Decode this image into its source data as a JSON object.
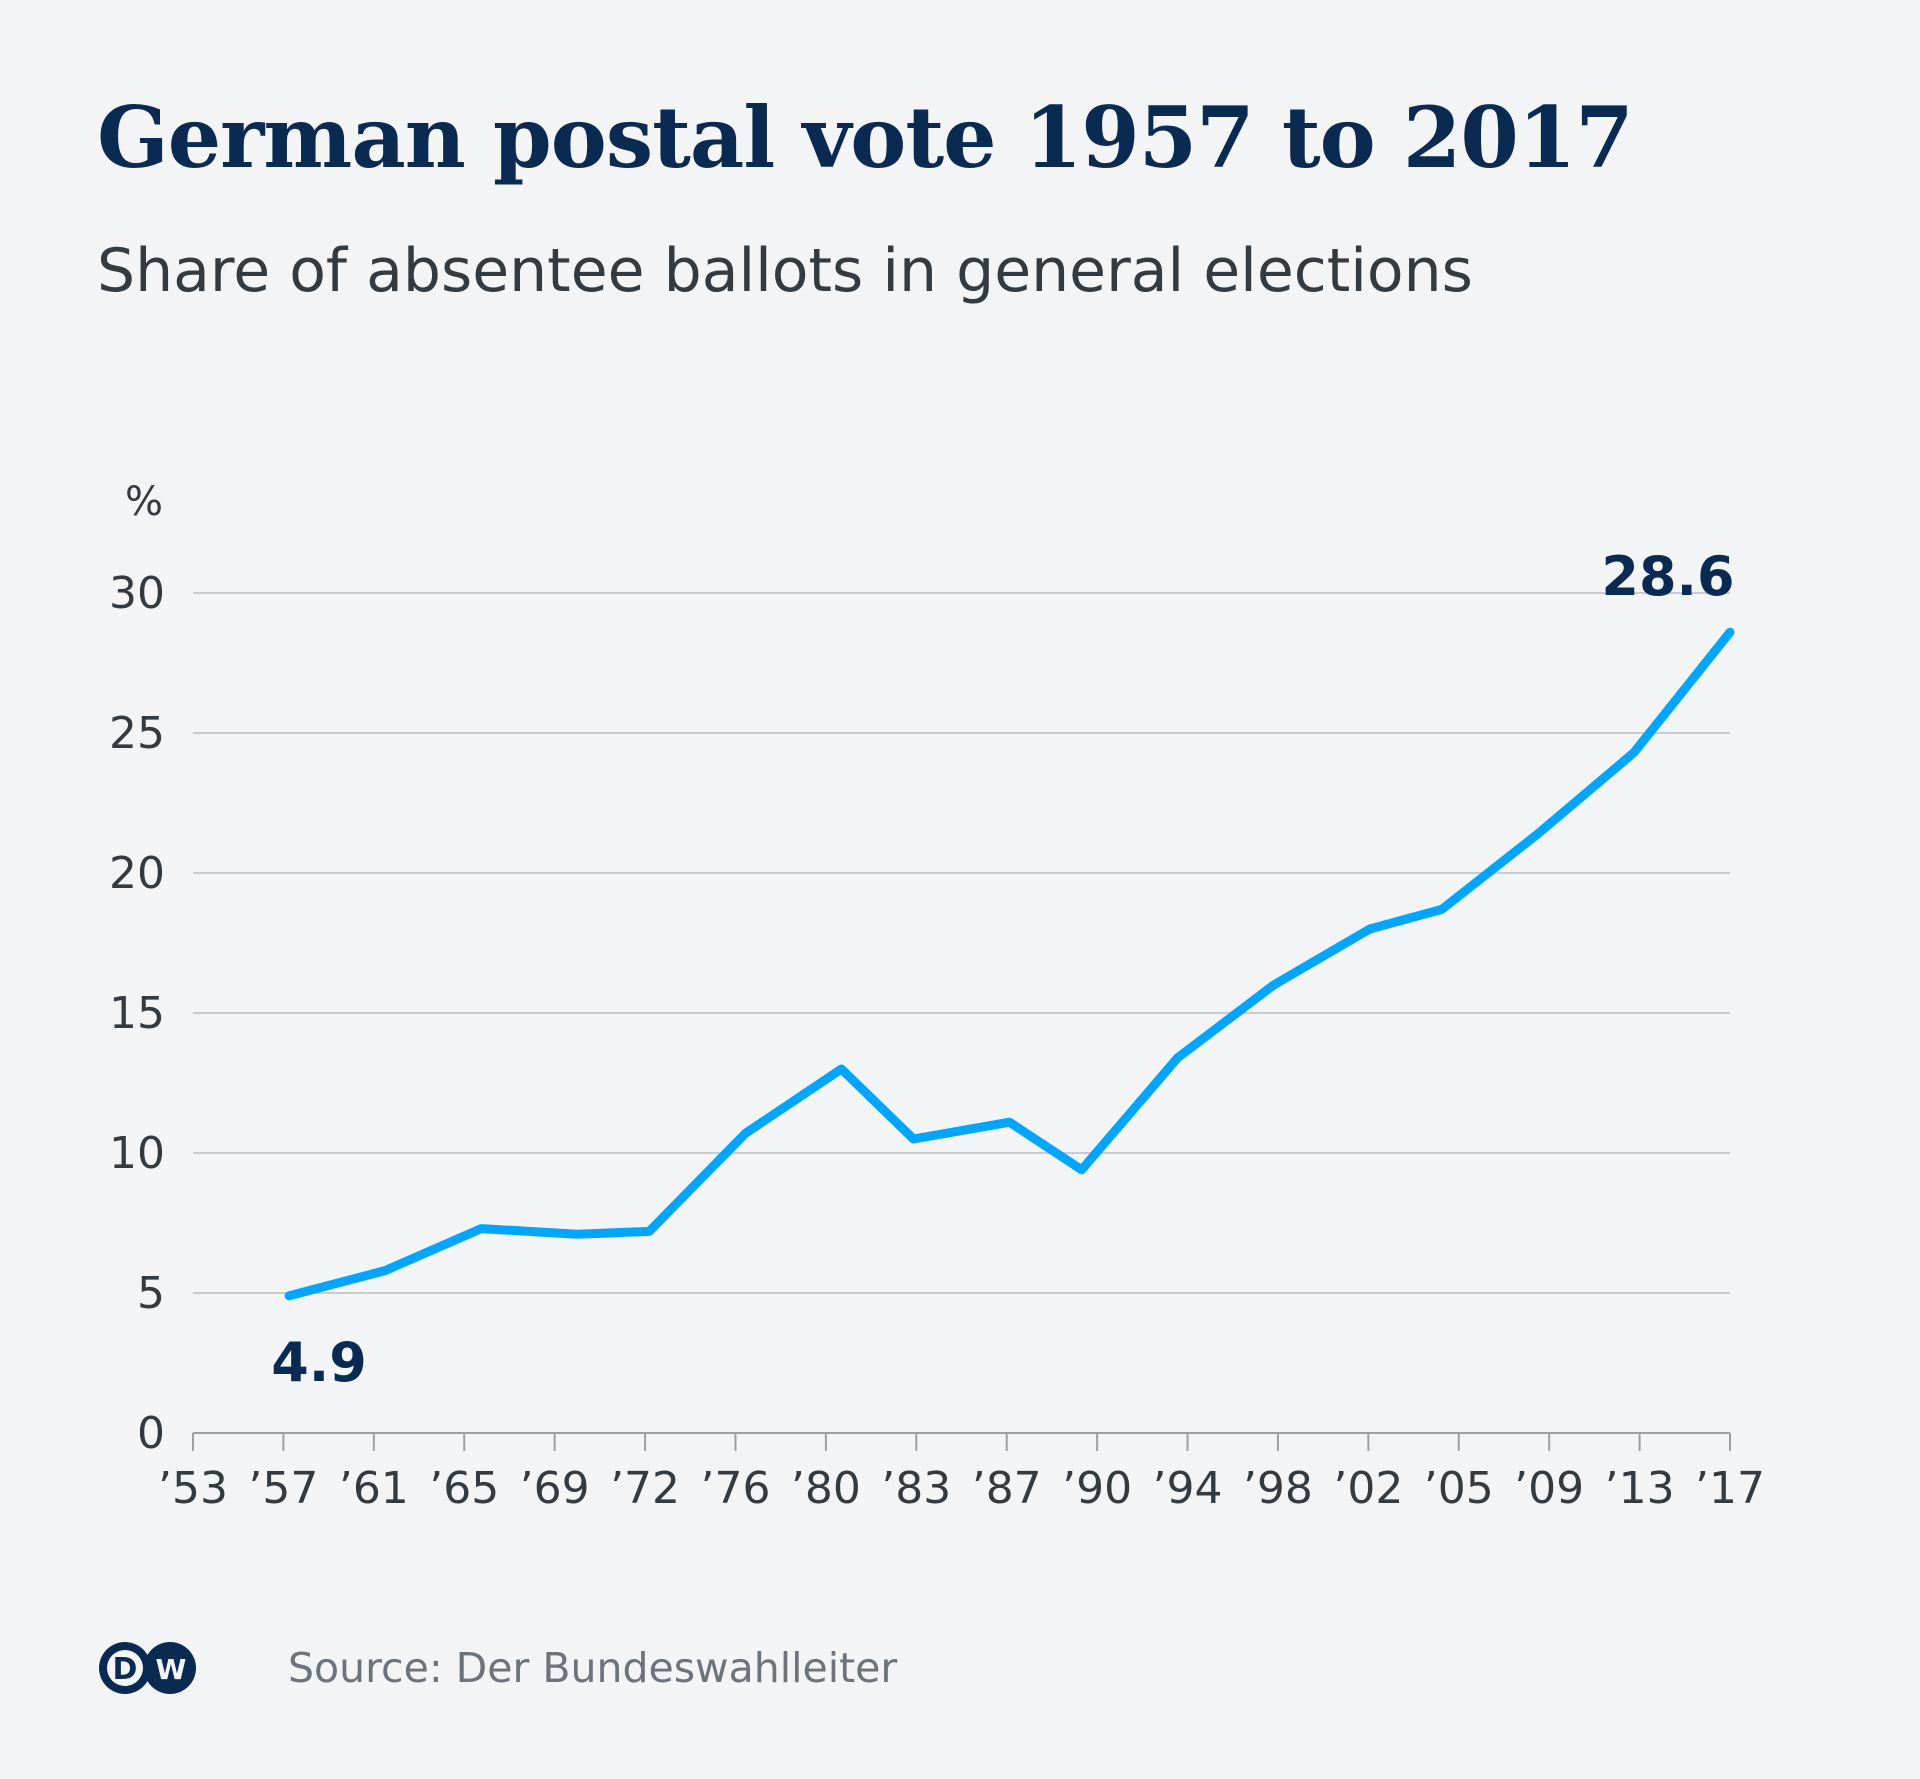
{
  "title": "German postal vote 1957 to 2017",
  "subtitle": "Share of absentee ballots in general elections",
  "source": "Source: Der Bundeswahlleiter",
  "logo": {
    "text": "DW",
    "icon": "dw-logo-icon"
  },
  "colors": {
    "line": "#00a5ff",
    "title": "#0b2a52",
    "grid": "#c8ccd0",
    "annotation": "#0b2a52",
    "axis_text": "#333a40"
  },
  "chart_data": {
    "type": "line",
    "ylabel": "%",
    "ylim": [
      0,
      30
    ],
    "y_ticks": [
      0,
      5,
      10,
      15,
      20,
      25,
      30
    ],
    "x_tick_labels": [
      "’53",
      "’57",
      "’61",
      "’65",
      "’69",
      "’72",
      "’76",
      "’80",
      "’83",
      "’87",
      "’90",
      "’94",
      "’98",
      "’02",
      "’05",
      "’09",
      "’13",
      "’17"
    ],
    "grid": true,
    "series": [
      {
        "x": [
          "1957",
          "1961",
          "1965",
          "1969",
          "1972",
          "1976",
          "1980",
          "1983",
          "1987",
          "1990",
          "1994",
          "1998",
          "2002",
          "2005",
          "2009",
          "2013",
          "2017"
        ],
        "values": [
          4.9,
          5.8,
          7.3,
          7.1,
          7.2,
          10.7,
          13.0,
          10.5,
          11.1,
          9.4,
          13.4,
          16.0,
          18.0,
          18.7,
          21.4,
          24.3,
          28.6
        ]
      }
    ],
    "annotations": [
      {
        "label": "4.9",
        "index": 0
      },
      {
        "label": "28.6",
        "index": 16
      }
    ]
  }
}
